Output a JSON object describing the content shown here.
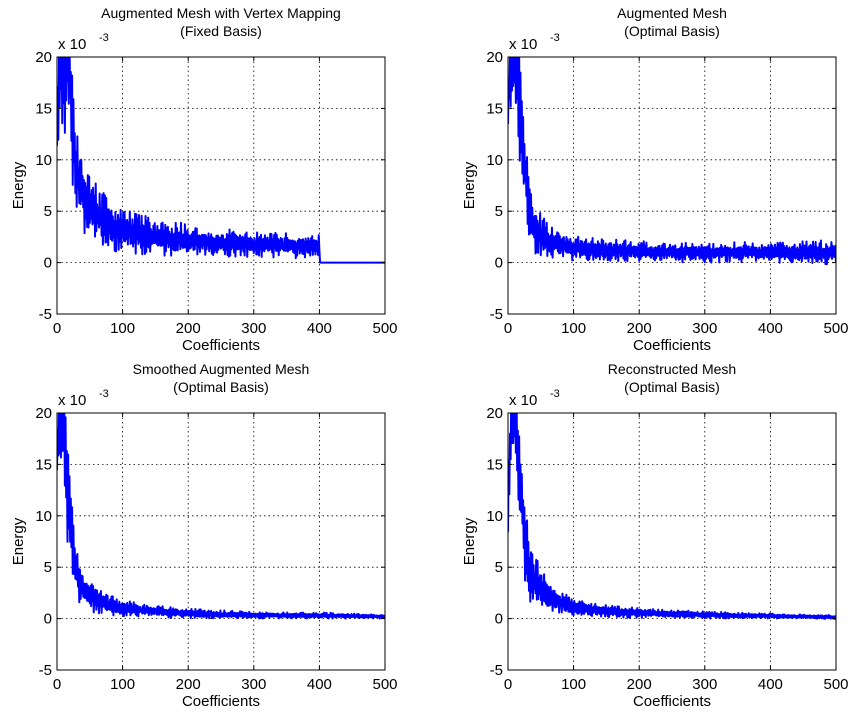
{
  "figure": {
    "background": "#ffffff",
    "line_color": "#0000ff"
  },
  "chart_data": [
    {
      "type": "line",
      "title": [
        "Augmented Mesh with Vertex Mapping",
        "(Fixed Basis)"
      ],
      "xlabel": "Coefficients",
      "ylabel": "Energy",
      "y_exponent_label": {
        "base": "x 10",
        "exponent": "-3"
      },
      "xlim": [
        0,
        500
      ],
      "ylim": [
        -5,
        20
      ],
      "xticks": [
        0,
        100,
        200,
        300,
        400,
        500
      ],
      "yticks": [
        -5,
        0,
        5,
        10,
        15,
        20
      ],
      "grid": true,
      "series": [
        {
          "color": "#0000ff",
          "x": [
            0,
            5,
            10,
            15,
            20,
            25,
            30,
            35,
            40,
            50,
            60,
            70,
            80,
            90,
            100,
            120,
            140,
            160,
            180,
            200,
            220,
            240,
            260,
            280,
            300,
            320,
            340,
            360,
            380,
            400,
            401,
            420,
            440,
            460,
            480,
            500
          ],
          "y": [
            13,
            20,
            20,
            20,
            18,
            12,
            9,
            7.5,
            6.5,
            5.5,
            4.8,
            4.2,
            3.8,
            3.4,
            3.1,
            2.8,
            2.6,
            2.4,
            2.3,
            2.2,
            2.1,
            2.0,
            1.9,
            1.8,
            1.8,
            1.7,
            1.7,
            1.6,
            1.6,
            1.6,
            0,
            0,
            0,
            0,
            0,
            0
          ],
          "noise": [
            2,
            8,
            8,
            8,
            7,
            6,
            5,
            4,
            3.5,
            3.2,
            3,
            2.8,
            2.6,
            2.4,
            2.2,
            2,
            1.9,
            1.8,
            1.7,
            1.6,
            1.5,
            1.4,
            1.4,
            1.3,
            1.3,
            1.2,
            1.2,
            1.2,
            1.1,
            1.1,
            0,
            0,
            0,
            0,
            0,
            0
          ]
        }
      ]
    },
    {
      "type": "line",
      "title": [
        "Augmented Mesh",
        "(Optimal Basis)"
      ],
      "xlabel": "Coefficients",
      "ylabel": "Energy",
      "y_exponent_label": {
        "base": "x 10",
        "exponent": "-3"
      },
      "xlim": [
        0,
        500
      ],
      "ylim": [
        -5,
        20
      ],
      "xticks": [
        0,
        100,
        200,
        300,
        400,
        500
      ],
      "yticks": [
        -5,
        0,
        5,
        10,
        15,
        20
      ],
      "grid": true,
      "series": [
        {
          "color": "#0000ff",
          "x": [
            0,
            5,
            10,
            15,
            20,
            25,
            30,
            35,
            40,
            50,
            60,
            70,
            80,
            100,
            150,
            200,
            250,
            300,
            350,
            400,
            450,
            500
          ],
          "y": [
            16,
            20,
            20,
            18,
            14,
            10,
            6,
            4,
            3.2,
            2.6,
            2.2,
            1.9,
            1.7,
            1.4,
            1.2,
            1.1,
            1.0,
            1.0,
            1.0,
            1.0,
            1.0,
            1.0
          ],
          "noise": [
            3,
            6,
            7,
            7,
            7,
            6,
            4,
            3,
            2.6,
            2.2,
            1.8,
            1.5,
            1.3,
            1.2,
            1.1,
            1.0,
            1.0,
            1.0,
            1.0,
            1.0,
            1.1,
            1.2
          ]
        }
      ]
    },
    {
      "type": "line",
      "title": [
        "Smoothed Augmented Mesh",
        "(Optimal Basis)"
      ],
      "xlabel": "Coefficients",
      "ylabel": "Energy",
      "y_exponent_label": {
        "base": "x 10",
        "exponent": "-3"
      },
      "xlim": [
        0,
        500
      ],
      "ylim": [
        -5,
        20
      ],
      "xticks": [
        0,
        100,
        200,
        300,
        400,
        500
      ],
      "yticks": [
        -5,
        0,
        5,
        10,
        15,
        20
      ],
      "grid": true,
      "series": [
        {
          "color": "#0000ff",
          "x": [
            0,
            5,
            10,
            15,
            20,
            25,
            30,
            35,
            40,
            50,
            60,
            70,
            80,
            100,
            150,
            200,
            250,
            300,
            350,
            400,
            450,
            500
          ],
          "y": [
            16,
            20,
            20,
            14,
            10,
            7,
            4.5,
            3.5,
            3.0,
            2.5,
            2.0,
            1.6,
            1.3,
            1.0,
            0.7,
            0.5,
            0.4,
            0.35,
            0.3,
            0.3,
            0.25,
            0.2
          ],
          "noise": [
            3,
            6,
            6,
            6,
            5,
            4,
            3,
            2.4,
            2.0,
            1.8,
            1.5,
            1.2,
            1.0,
            0.8,
            0.6,
            0.5,
            0.4,
            0.35,
            0.3,
            0.3,
            0.25,
            0.2
          ]
        }
      ]
    },
    {
      "type": "line",
      "title": [
        "Reconstructed Mesh",
        "(Optimal Basis)"
      ],
      "xlabel": "Coefficients",
      "ylabel": "Energy",
      "y_exponent_label": {
        "base": "x 10",
        "exponent": "-3"
      },
      "xlim": [
        0,
        500
      ],
      "ylim": [
        -5,
        20
      ],
      "xticks": [
        0,
        100,
        200,
        300,
        400,
        500
      ],
      "yticks": [
        -5,
        0,
        5,
        10,
        15,
        20
      ],
      "grid": true,
      "series": [
        {
          "color": "#0000ff",
          "x": [
            0,
            5,
            10,
            15,
            20,
            25,
            30,
            35,
            40,
            50,
            60,
            70,
            80,
            100,
            150,
            200,
            250,
            300,
            350,
            400,
            450,
            500
          ],
          "y": [
            10,
            20,
            20,
            16,
            12,
            8,
            5.5,
            4.0,
            3.5,
            3.0,
            2.4,
            1.9,
            1.5,
            1.1,
            0.7,
            0.55,
            0.45,
            0.35,
            0.3,
            0.25,
            0.2,
            0.15
          ],
          "noise": [
            3,
            5,
            6,
            6,
            5,
            4.5,
            3.5,
            3.0,
            2.6,
            2.2,
            1.8,
            1.4,
            1.1,
            0.9,
            0.6,
            0.5,
            0.4,
            0.35,
            0.3,
            0.25,
            0.2,
            0.2
          ]
        }
      ]
    }
  ]
}
